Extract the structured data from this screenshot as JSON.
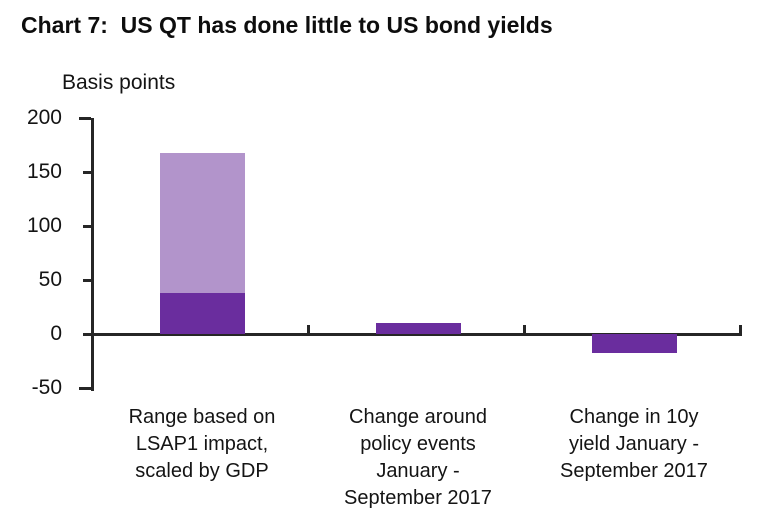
{
  "title": "Chart 7:  US QT has done little to US bond yields",
  "chart_data": {
    "type": "bar",
    "title": "Chart 7:  US QT has done little to US bond yields",
    "ylabel": "Basis points",
    "xlabel": "",
    "ylim": [
      -50,
      200
    ],
    "yticks": [
      200,
      150,
      100,
      50,
      0,
      -50
    ],
    "grid": false,
    "legend": "none",
    "colors": {
      "dark_purple": "#6a2d9e",
      "light_purple": "#b294cb",
      "axis": "#262626"
    },
    "categories": [
      "Range based on\nLSAP1 impact,\nscaled by GDP",
      "Change around\npolicy events\nJanuary -\nSeptember 2017",
      "Change in 10y\nyield January -\nSeptember 2017"
    ],
    "bars": [
      {
        "category_index": 0,
        "segments": [
          {
            "from": 0,
            "to": 38,
            "color": "dark_purple"
          },
          {
            "from": 38,
            "to": 168,
            "color": "light_purple"
          }
        ]
      },
      {
        "category_index": 1,
        "segments": [
          {
            "from": 0,
            "to": 10,
            "color": "dark_purple"
          }
        ]
      },
      {
        "category_index": 2,
        "segments": [
          {
            "from": -18,
            "to": 0,
            "color": "dark_purple"
          }
        ]
      }
    ]
  }
}
